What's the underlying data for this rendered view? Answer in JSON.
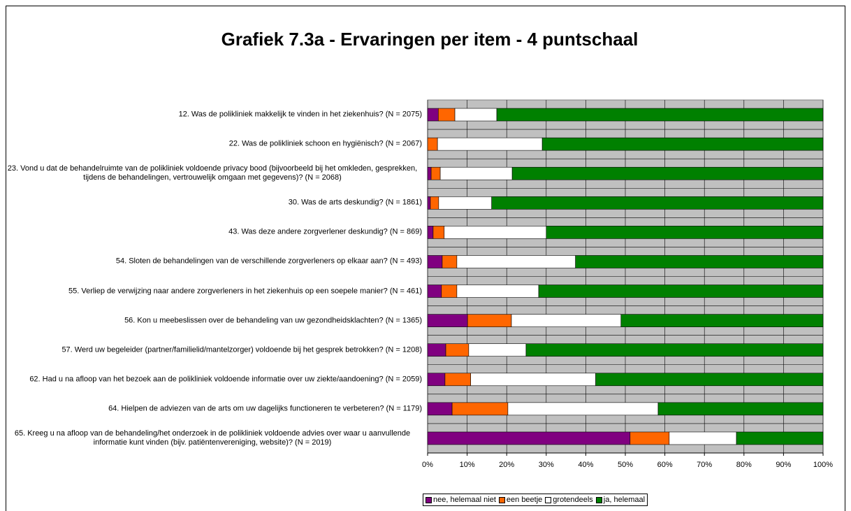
{
  "chart_data": {
    "type": "stacked-barh",
    "title": "Grafiek 7.3a - Ervaringen per item - 4 puntschaal",
    "categories": [
      "12. Was de polikliniek makkelijk te vinden in het ziekenhuis? (N = 2075)",
      "22. Was de polikliniek schoon en hygiënisch? (N = 2067)",
      "23. Vond u dat de behandelruimte van de polikliniek voldoende privacy bood (bijvoorbeeld bij het omkleden, gesprekken, tijdens de behandelingen, vertrouwelijk omgaan met gegevens)? (N = 2068)",
      "30. Was de arts deskundig? (N = 1861)",
      "43. Was deze andere zorgverlener deskundig? (N = 869)",
      "54. Sloten de behandelingen van de verschillende zorgverleners op elkaar aan? (N = 493)",
      "55. Verliep de verwijzing naar andere zorgverleners in het ziekenhuis op een soepele manier? (N = 461)",
      "56. Kon u meebeslissen over de behandeling van uw gezondheidsklachten? (N = 1365)",
      "57. Werd uw begeleider (partner/familielid/mantelzorger) voldoende bij het gesprek betrokken? (N = 1208)",
      "62. Had u na afloop van het bezoek aan de polikliniek voldoende informatie over uw ziekte/aandoening? (N = 2059)",
      "64. Hielpen de adviezen van de arts om uw dagelijks functioneren te verbeteren? (N = 1179)",
      "65. Kreeg u na afloop van de behandeling/het onderzoek in de polikliniek voldoende advies over waar u aanvullende informatie kunt vinden (bijv. patiëntenvereniging, website)? (N = 2019)"
    ],
    "series": [
      {
        "name": "nee, helemaal niet",
        "color": "#800080",
        "values": [
          2.7,
          0,
          0.9,
          0.7,
          1.4,
          3.7,
          3.5,
          10.1,
          4.6,
          4.4,
          6.2,
          51.2
        ]
      },
      {
        "name": "een beetje",
        "color": "#ff6600",
        "values": [
          4.2,
          2.5,
          2.3,
          2.1,
          2.8,
          3.7,
          3.9,
          11.1,
          5.8,
          6.5,
          14.1,
          9.9
        ]
      },
      {
        "name": "grotendeels",
        "color": "#ffffff",
        "values": [
          10.6,
          26.5,
          18.2,
          13.4,
          25.8,
          30,
          20.7,
          27.7,
          14.5,
          31.6,
          38,
          17
        ]
      },
      {
        "name": "ja, helemaal",
        "color": "#008000",
        "values": [
          82.5,
          71,
          78.6,
          83.8,
          70,
          62.6,
          71.9,
          51.1,
          75.1,
          57.5,
          41.7,
          21.9
        ]
      }
    ],
    "xlim": [
      0,
      100
    ],
    "xticks": [
      {
        "value": 0,
        "label": "0%"
      },
      {
        "value": 10,
        "label": "10%"
      },
      {
        "value": 20,
        "label": "20%"
      },
      {
        "value": 30,
        "label": "30%"
      },
      {
        "value": 40,
        "label": "40%"
      },
      {
        "value": 50,
        "label": "50%"
      },
      {
        "value": 60,
        "label": "60%"
      },
      {
        "value": 70,
        "label": "70%"
      },
      {
        "value": 80,
        "label": "80%"
      },
      {
        "value": 90,
        "label": "90%"
      },
      {
        "value": 100,
        "label": "100%"
      }
    ],
    "grid": true,
    "legend": "bottom"
  }
}
